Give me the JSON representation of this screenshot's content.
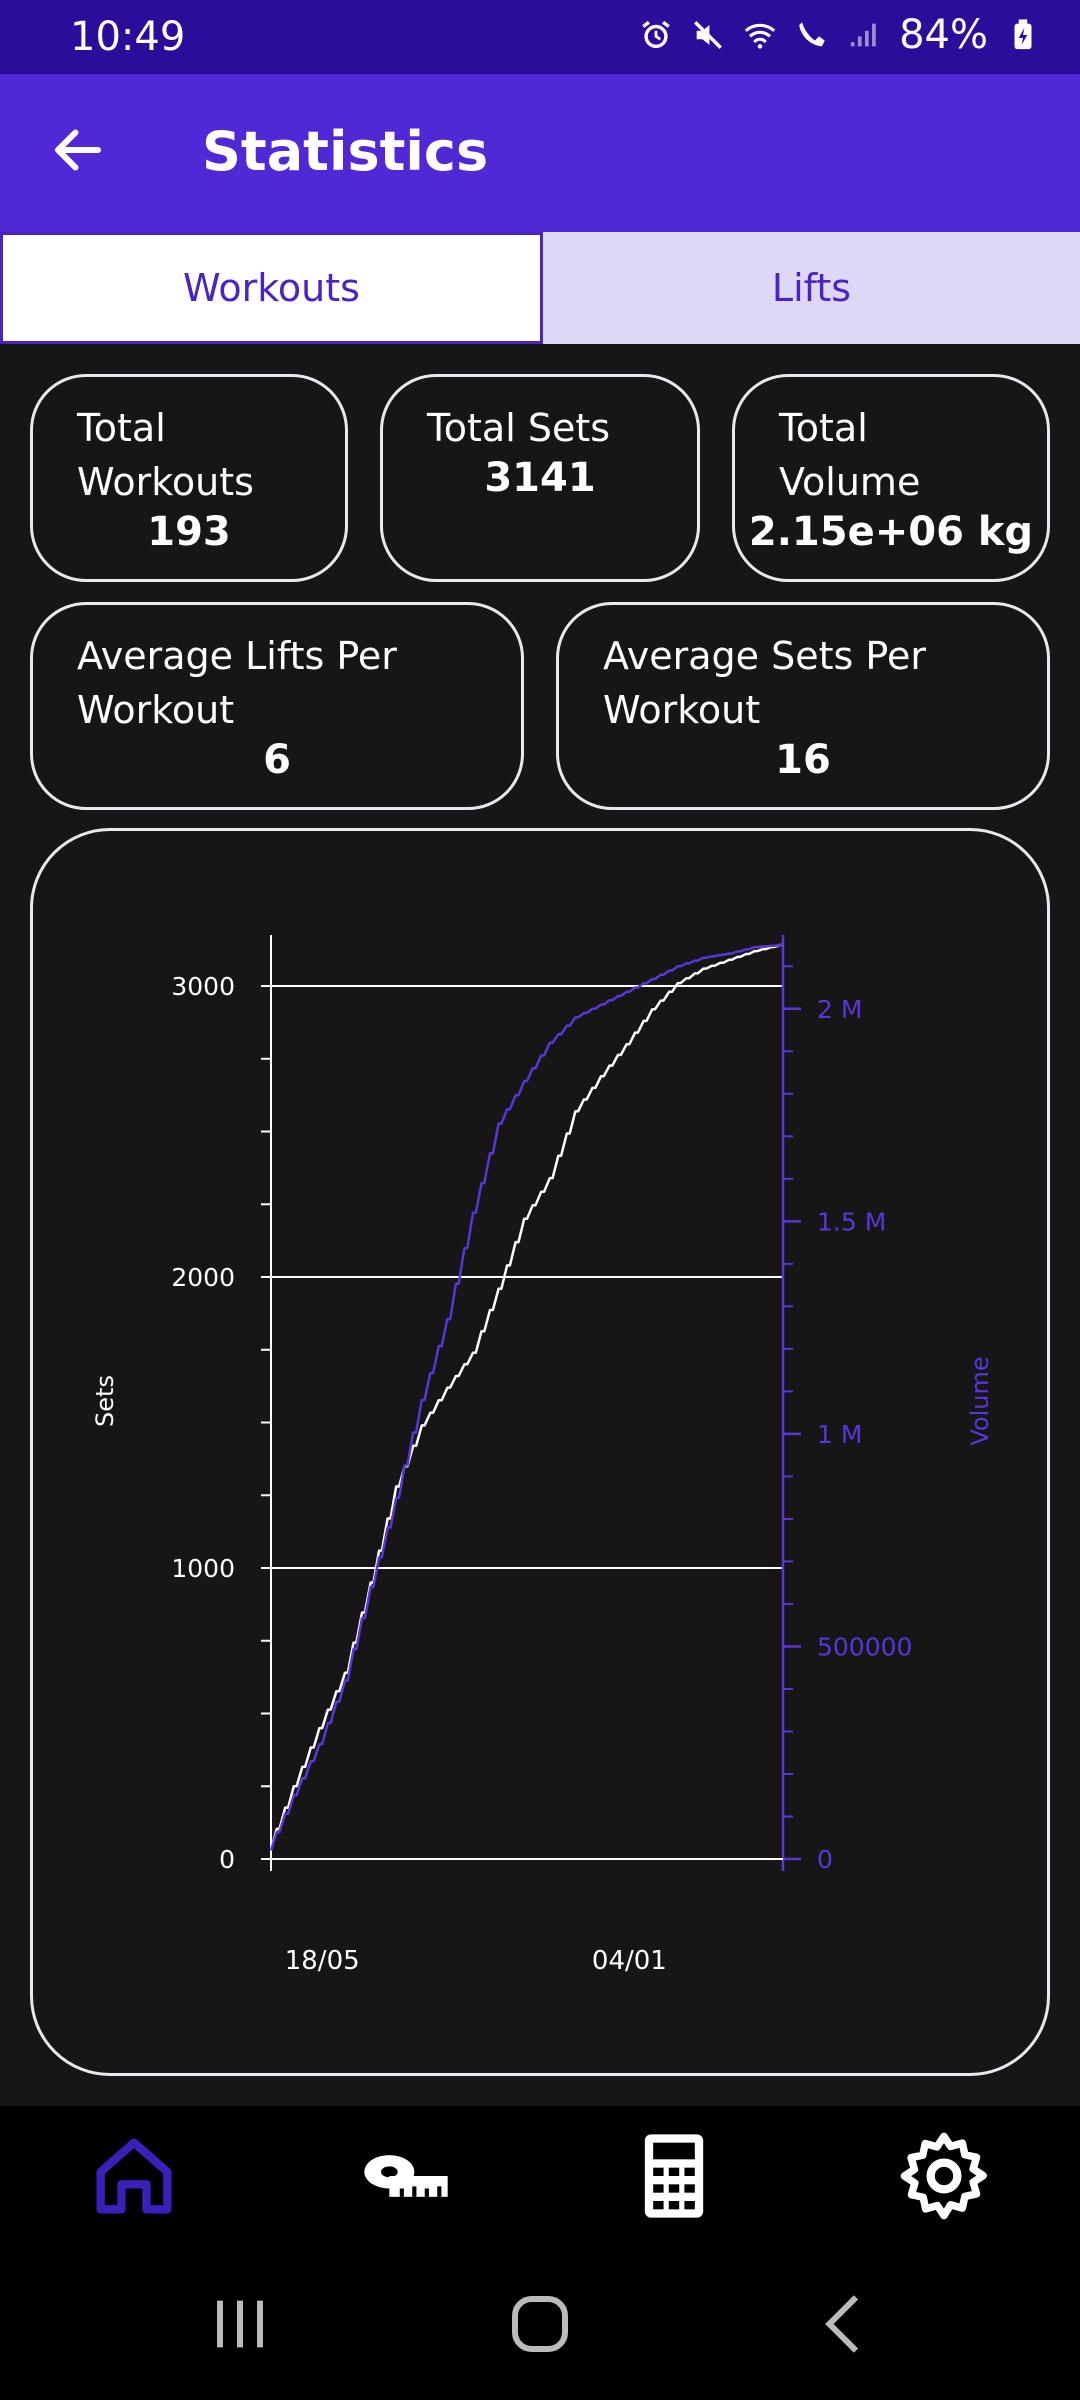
{
  "status_bar": {
    "time": "10:49",
    "battery": "84%"
  },
  "app_bar": {
    "title": "Statistics"
  },
  "tabs": [
    {
      "label": "Workouts",
      "active": true
    },
    {
      "label": "Lifts",
      "active": false
    }
  ],
  "stats": {
    "total_workouts": {
      "label": "Total Workouts",
      "value": "193"
    },
    "total_sets": {
      "label": "Total Sets",
      "value": "3141"
    },
    "total_volume": {
      "label": "Total Volume",
      "value": "2.15e+06 kg"
    },
    "avg_lifts": {
      "label": "Average Lifts Per Workout",
      "value": "6"
    },
    "avg_sets": {
      "label": "Average Sets Per Workout",
      "value": "16"
    }
  },
  "bottom_nav": [
    {
      "icon": "home-icon",
      "active": true
    },
    {
      "icon": "measuring-tape-icon",
      "active": false
    },
    {
      "icon": "calculator-icon",
      "active": false
    },
    {
      "icon": "gear-icon",
      "active": false
    }
  ],
  "colors": {
    "accent": "#5128d6",
    "status_bar": "#2a0e9b",
    "volume_series": "#5a35d8",
    "sets_series": "#ffffff"
  },
  "chart_data": {
    "type": "line",
    "xlabel": "",
    "x_tick_labels": [
      "18/05",
      "04/01"
    ],
    "y_left": {
      "label": "Sets",
      "range": [
        0,
        3141
      ],
      "ticks": [
        0,
        1000,
        2000,
        3000
      ],
      "tick_labels": [
        "0",
        "1000",
        "2000",
        "3000"
      ]
    },
    "y_right": {
      "label": "Volume",
      "range": [
        0,
        2150000
      ],
      "ticks": [
        0,
        500000,
        1000000,
        1500000,
        2000000
      ],
      "tick_labels": [
        "0",
        "500000",
        "1 M",
        "1.5 M",
        "2 M"
      ]
    },
    "grid": "horizontal",
    "series": [
      {
        "name": "Sets",
        "axis": "left",
        "color": "#ffffff",
        "x": [
          0,
          0.05,
          0.1,
          0.15,
          0.2,
          0.25,
          0.3,
          0.35,
          0.4,
          0.45,
          0.5,
          0.55,
          0.6,
          0.65,
          0.7,
          0.75,
          0.8,
          0.85,
          0.9,
          0.95,
          1.0
        ],
        "y": [
          30,
          250,
          450,
          640,
          950,
          1280,
          1490,
          1620,
          1740,
          1960,
          2200,
          2340,
          2570,
          2690,
          2800,
          2920,
          3010,
          3060,
          3090,
          3120,
          3141
        ]
      },
      {
        "name": "Volume",
        "axis": "right",
        "color": "#5a35d8",
        "x": [
          0,
          0.05,
          0.1,
          0.15,
          0.2,
          0.25,
          0.3,
          0.35,
          0.4,
          0.45,
          0.5,
          0.55,
          0.6,
          0.65,
          0.7,
          0.75,
          0.8,
          0.85,
          0.9,
          0.95,
          1.0
        ],
        "y": [
          20000,
          150000,
          270000,
          420000,
          640000,
          850000,
          1080000,
          1270000,
          1520000,
          1730000,
          1830000,
          1920000,
          1980000,
          2010000,
          2040000,
          2070000,
          2100000,
          2120000,
          2130000,
          2145000,
          2150000
        ]
      }
    ]
  }
}
